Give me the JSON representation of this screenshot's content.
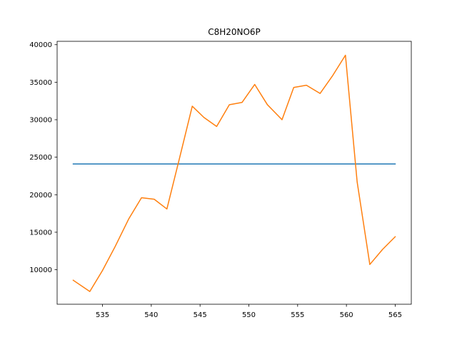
{
  "chart_data": {
    "type": "line",
    "title": "C8H20NO6P",
    "xlabel": "",
    "ylabel": "",
    "xlim": [
      530.35,
      566.65
    ],
    "ylim": [
      5400,
      40450
    ],
    "grid": false,
    "x_ticks": [
      535,
      540,
      545,
      550,
      555,
      560,
      565
    ],
    "y_ticks": [
      10000,
      15000,
      20000,
      25000,
      30000,
      35000,
      40000
    ],
    "colors": {
      "series_1": "#1f77b4",
      "series_2": "#ff7f0e"
    },
    "series": [
      {
        "x": [
          532,
          565
        ],
        "y": [
          24100,
          24100
        ]
      },
      {
        "x": [
          532.0,
          533.7,
          535.0,
          536.3,
          537.7,
          539.0,
          540.3,
          541.6,
          542.9,
          544.2,
          545.4,
          546.7,
          548.0,
          549.3,
          550.6,
          551.9,
          553.4,
          554.6,
          555.9,
          557.3,
          558.6,
          559.9,
          561.1,
          562.4,
          563.7,
          565.0
        ],
        "y": [
          8600,
          7100,
          9900,
          13100,
          16800,
          19600,
          19400,
          18100,
          24900,
          31800,
          30300,
          29100,
          32000,
          32300,
          34700,
          32000,
          30000,
          34300,
          34600,
          33500,
          35900,
          38600,
          21700,
          10700,
          12700,
          14400
        ]
      }
    ]
  }
}
